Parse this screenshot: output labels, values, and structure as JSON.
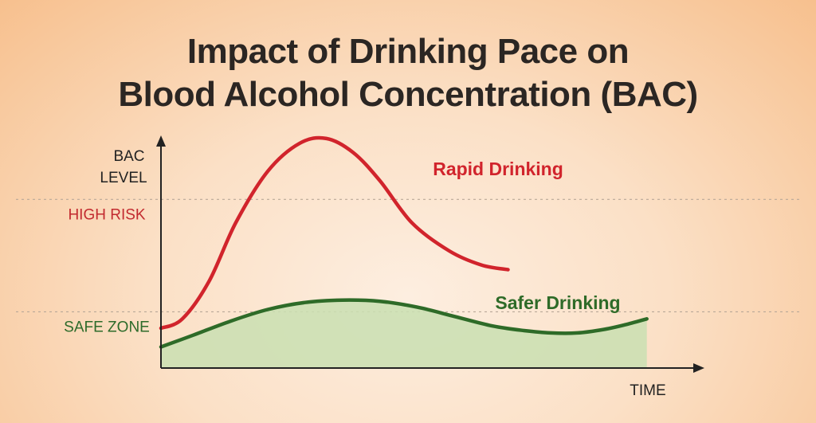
{
  "chart_data": {
    "type": "line",
    "title": "Impact of Drinking Pace on Blood Alcohol Concentration (BAC)",
    "title_lines": [
      "Impact of Drinking Pace on",
      "Blood Alcohol Concentration (BAC)"
    ],
    "xlabel": "TIME",
    "ylabel_lines": [
      "BAC",
      "LEVEL"
    ],
    "xlim": [
      0,
      100
    ],
    "ylim": [
      0,
      100
    ],
    "grid": false,
    "legend": "inline labels",
    "reference_lines": [
      {
        "label": "HIGH RISK",
        "y": 72,
        "color": "#c22a2f"
      },
      {
        "label": "SAFE ZONE",
        "y": 24,
        "color": "#2d6b2a"
      }
    ],
    "series": [
      {
        "name": "Rapid Drinking",
        "color": "#d1242c",
        "area": false,
        "x": [
          0,
          4,
          9,
          14,
          20,
          26,
          31,
          36,
          41,
          47,
          54,
          60,
          65
        ],
        "y": [
          17,
          21,
          37,
          62,
          84,
          96,
          98,
          92,
          80,
          62,
          50,
          44,
          42
        ]
      },
      {
        "name": "Safer Drinking",
        "color": "#2e6b28",
        "area": true,
        "area_color": "#c9dfb2",
        "x": [
          0,
          6,
          13,
          20,
          27,
          34,
          41,
          48,
          55,
          62,
          68,
          73,
          78,
          83,
          87,
          91
        ],
        "y": [
          9,
          14,
          20,
          25,
          28,
          29,
          28.5,
          26,
          22,
          18,
          16,
          15,
          15,
          16.5,
          18.5,
          21
        ]
      }
    ]
  }
}
